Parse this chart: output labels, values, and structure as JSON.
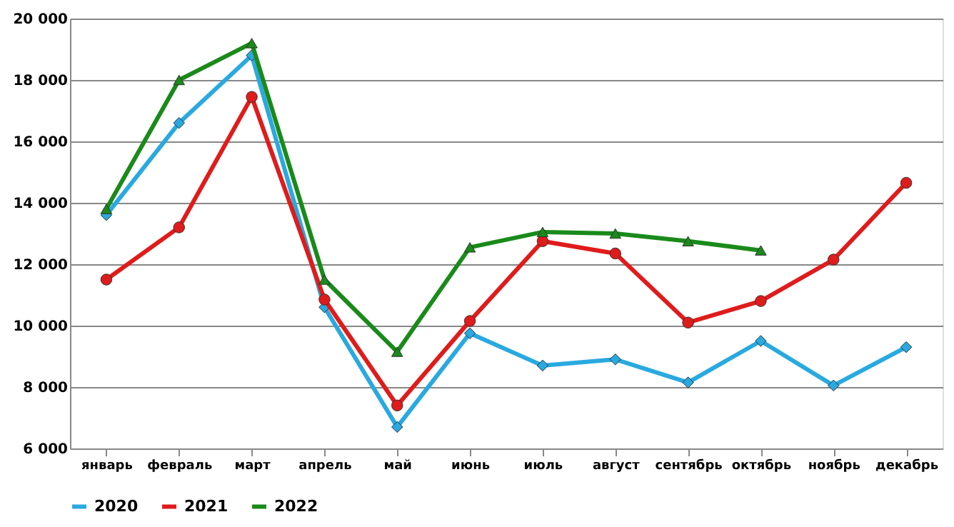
{
  "chart_data": {
    "type": "line",
    "categories": [
      "январь",
      "февраль",
      "март",
      "апрель",
      "май",
      "июнь",
      "июль",
      "август",
      "сентябрь",
      "октябрь",
      "ноябрь",
      "декабрь"
    ],
    "series": [
      {
        "name": "2020",
        "color": "#29a9e0",
        "marker": "diamond",
        "values": [
          13600,
          16600,
          18800,
          10600,
          6700,
          9750,
          8700,
          8900,
          8150,
          9500,
          8050,
          9300
        ]
      },
      {
        "name": "2021",
        "color": "#e01b1b",
        "marker": "circle",
        "values": [
          11500,
          13200,
          17450,
          10850,
          7400,
          10150,
          12750,
          12350,
          10100,
          10800,
          12150,
          14650
        ]
      },
      {
        "name": "2022",
        "color": "#1a8a1a",
        "marker": "triangle",
        "values": [
          13800,
          18000,
          19200,
          11500,
          9150,
          12550,
          13050,
          13000,
          12750,
          12450,
          null,
          null
        ]
      }
    ],
    "ylim": [
      6000,
      20000
    ],
    "yticks": [
      {
        "value": 6000,
        "label": "6 000"
      },
      {
        "value": 8000,
        "label": "8 000"
      },
      {
        "value": 10000,
        "label": "10 000"
      },
      {
        "value": 12000,
        "label": "12 000"
      },
      {
        "value": 14000,
        "label": "14 000"
      },
      {
        "value": 16000,
        "label": "16 000"
      },
      {
        "value": 18000,
        "label": "18 000"
      },
      {
        "value": 20000,
        "label": "20 000"
      }
    ],
    "grid": "y",
    "legend": "bottom",
    "line_style": "solid"
  }
}
